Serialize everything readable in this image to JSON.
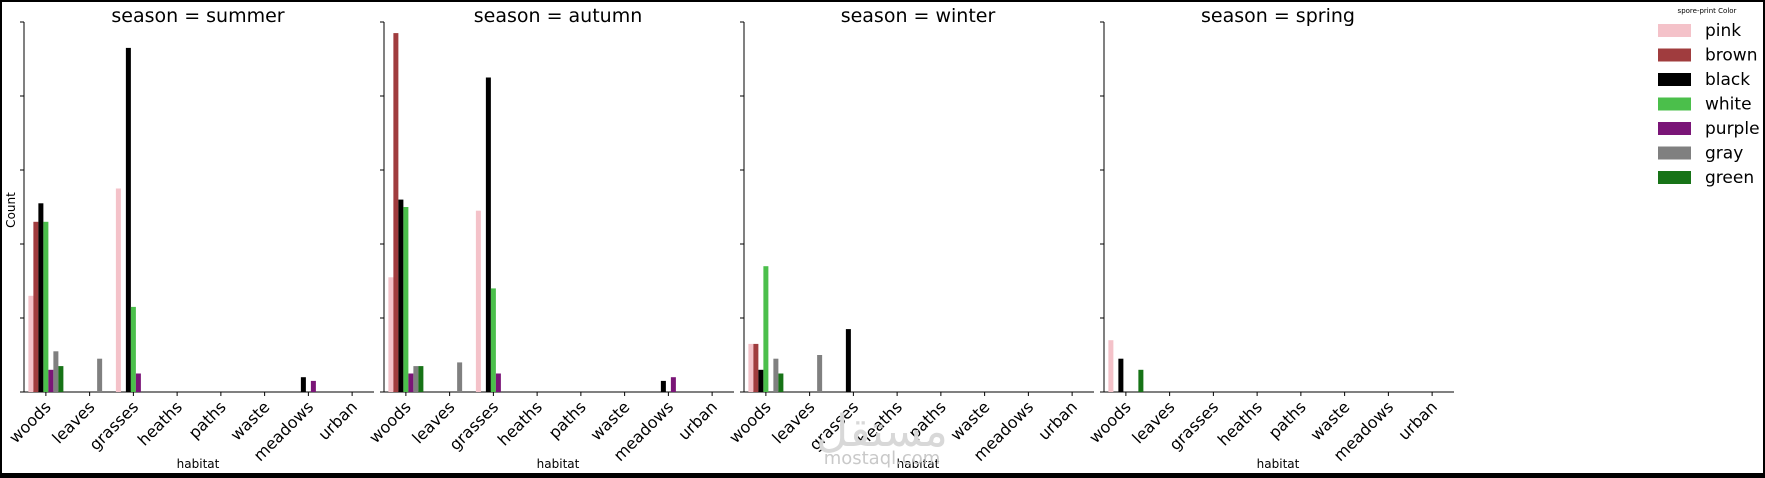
{
  "chart_data": {
    "type": "bar",
    "facet_variable": "season",
    "xlabel": "habitat",
    "ylabel": "Count",
    "categories": [
      "woods",
      "leaves",
      "grasses",
      "heaths",
      "paths",
      "waste",
      "meadows",
      "urban"
    ],
    "ylim": [
      0,
      100
    ],
    "legend": {
      "title": "spore-print Color",
      "placement": "right",
      "entries": [
        {
          "name": "pink",
          "color": "#f4c2c9"
        },
        {
          "name": "brown",
          "color": "#a03c3e"
        },
        {
          "name": "black",
          "color": "#000000"
        },
        {
          "name": "white",
          "color": "#4bbf4b"
        },
        {
          "name": "purple",
          "color": "#7a1577"
        },
        {
          "name": "gray",
          "color": "#808080"
        },
        {
          "name": "green",
          "color": "#177317"
        }
      ]
    },
    "panels": [
      {
        "title": "season = summer",
        "series": [
          {
            "name": "pink",
            "values": [
              26,
              0,
              55,
              0,
              0,
              0,
              0,
              0
            ]
          },
          {
            "name": "brown",
            "values": [
              46,
              0,
              0,
              0,
              0,
              0,
              0,
              0
            ]
          },
          {
            "name": "black",
            "values": [
              51,
              0,
              93,
              0,
              0,
              0,
              4,
              0
            ]
          },
          {
            "name": "white",
            "values": [
              46,
              0,
              23,
              0,
              0,
              0,
              0,
              0
            ]
          },
          {
            "name": "purple",
            "values": [
              6,
              0,
              5,
              0,
              0,
              0,
              3,
              0
            ]
          },
          {
            "name": "gray",
            "values": [
              11,
              9,
              0,
              0,
              0,
              0,
              0,
              0
            ]
          },
          {
            "name": "green",
            "values": [
              7,
              0,
              0,
              0,
              0,
              0,
              0,
              0
            ]
          }
        ]
      },
      {
        "title": "season = autumn",
        "series": [
          {
            "name": "pink",
            "values": [
              31,
              0,
              49,
              0,
              0,
              0,
              0,
              0
            ]
          },
          {
            "name": "brown",
            "values": [
              97,
              0,
              0,
              0,
              0,
              0,
              0,
              0
            ]
          },
          {
            "name": "black",
            "values": [
              52,
              0,
              85,
              0,
              0,
              0,
              3,
              0
            ]
          },
          {
            "name": "white",
            "values": [
              50,
              0,
              28,
              0,
              0,
              0,
              0,
              0
            ]
          },
          {
            "name": "purple",
            "values": [
              5,
              0,
              5,
              0,
              0,
              0,
              4,
              0
            ]
          },
          {
            "name": "gray",
            "values": [
              7,
              8,
              0,
              0,
              0,
              0,
              0,
              0
            ]
          },
          {
            "name": "green",
            "values": [
              7,
              0,
              0,
              0,
              0,
              0,
              0,
              0
            ]
          }
        ]
      },
      {
        "title": "season = winter",
        "series": [
          {
            "name": "pink",
            "values": [
              13,
              0,
              0,
              0,
              0,
              0,
              0,
              0
            ]
          },
          {
            "name": "brown",
            "values": [
              13,
              0,
              0,
              0,
              0,
              0,
              0,
              0
            ]
          },
          {
            "name": "black",
            "values": [
              6,
              0,
              17,
              0,
              0,
              0,
              0,
              0
            ]
          },
          {
            "name": "white",
            "values": [
              34,
              0,
              0,
              0,
              0,
              0,
              0,
              0
            ]
          },
          {
            "name": "purple",
            "values": [
              0,
              0,
              0,
              0,
              0,
              0,
              0,
              0
            ]
          },
          {
            "name": "gray",
            "values": [
              9,
              10,
              0,
              0,
              0,
              0,
              0,
              0
            ]
          },
          {
            "name": "green",
            "values": [
              5,
              0,
              0,
              0,
              0,
              0,
              0,
              0
            ]
          }
        ]
      },
      {
        "title": "season = spring",
        "series": [
          {
            "name": "pink",
            "values": [
              14,
              0,
              0,
              0,
              0,
              0,
              0,
              0
            ]
          },
          {
            "name": "brown",
            "values": [
              0,
              0,
              0,
              0,
              0,
              0,
              0,
              0
            ]
          },
          {
            "name": "black",
            "values": [
              9,
              0,
              0,
              0,
              0,
              0,
              0,
              0
            ]
          },
          {
            "name": "white",
            "values": [
              0,
              0,
              0,
              0,
              0,
              0,
              0,
              0
            ]
          },
          {
            "name": "purple",
            "values": [
              0,
              0,
              0,
              0,
              0,
              0,
              0,
              0
            ]
          },
          {
            "name": "gray",
            "values": [
              0,
              0,
              0,
              0,
              0,
              0,
              0,
              0
            ]
          },
          {
            "name": "green",
            "values": [
              6,
              0,
              0,
              0,
              0,
              0,
              0,
              0
            ]
          }
        ]
      }
    ]
  },
  "watermark": {
    "arabic": "مستقل",
    "latin": "mostaql.com"
  }
}
